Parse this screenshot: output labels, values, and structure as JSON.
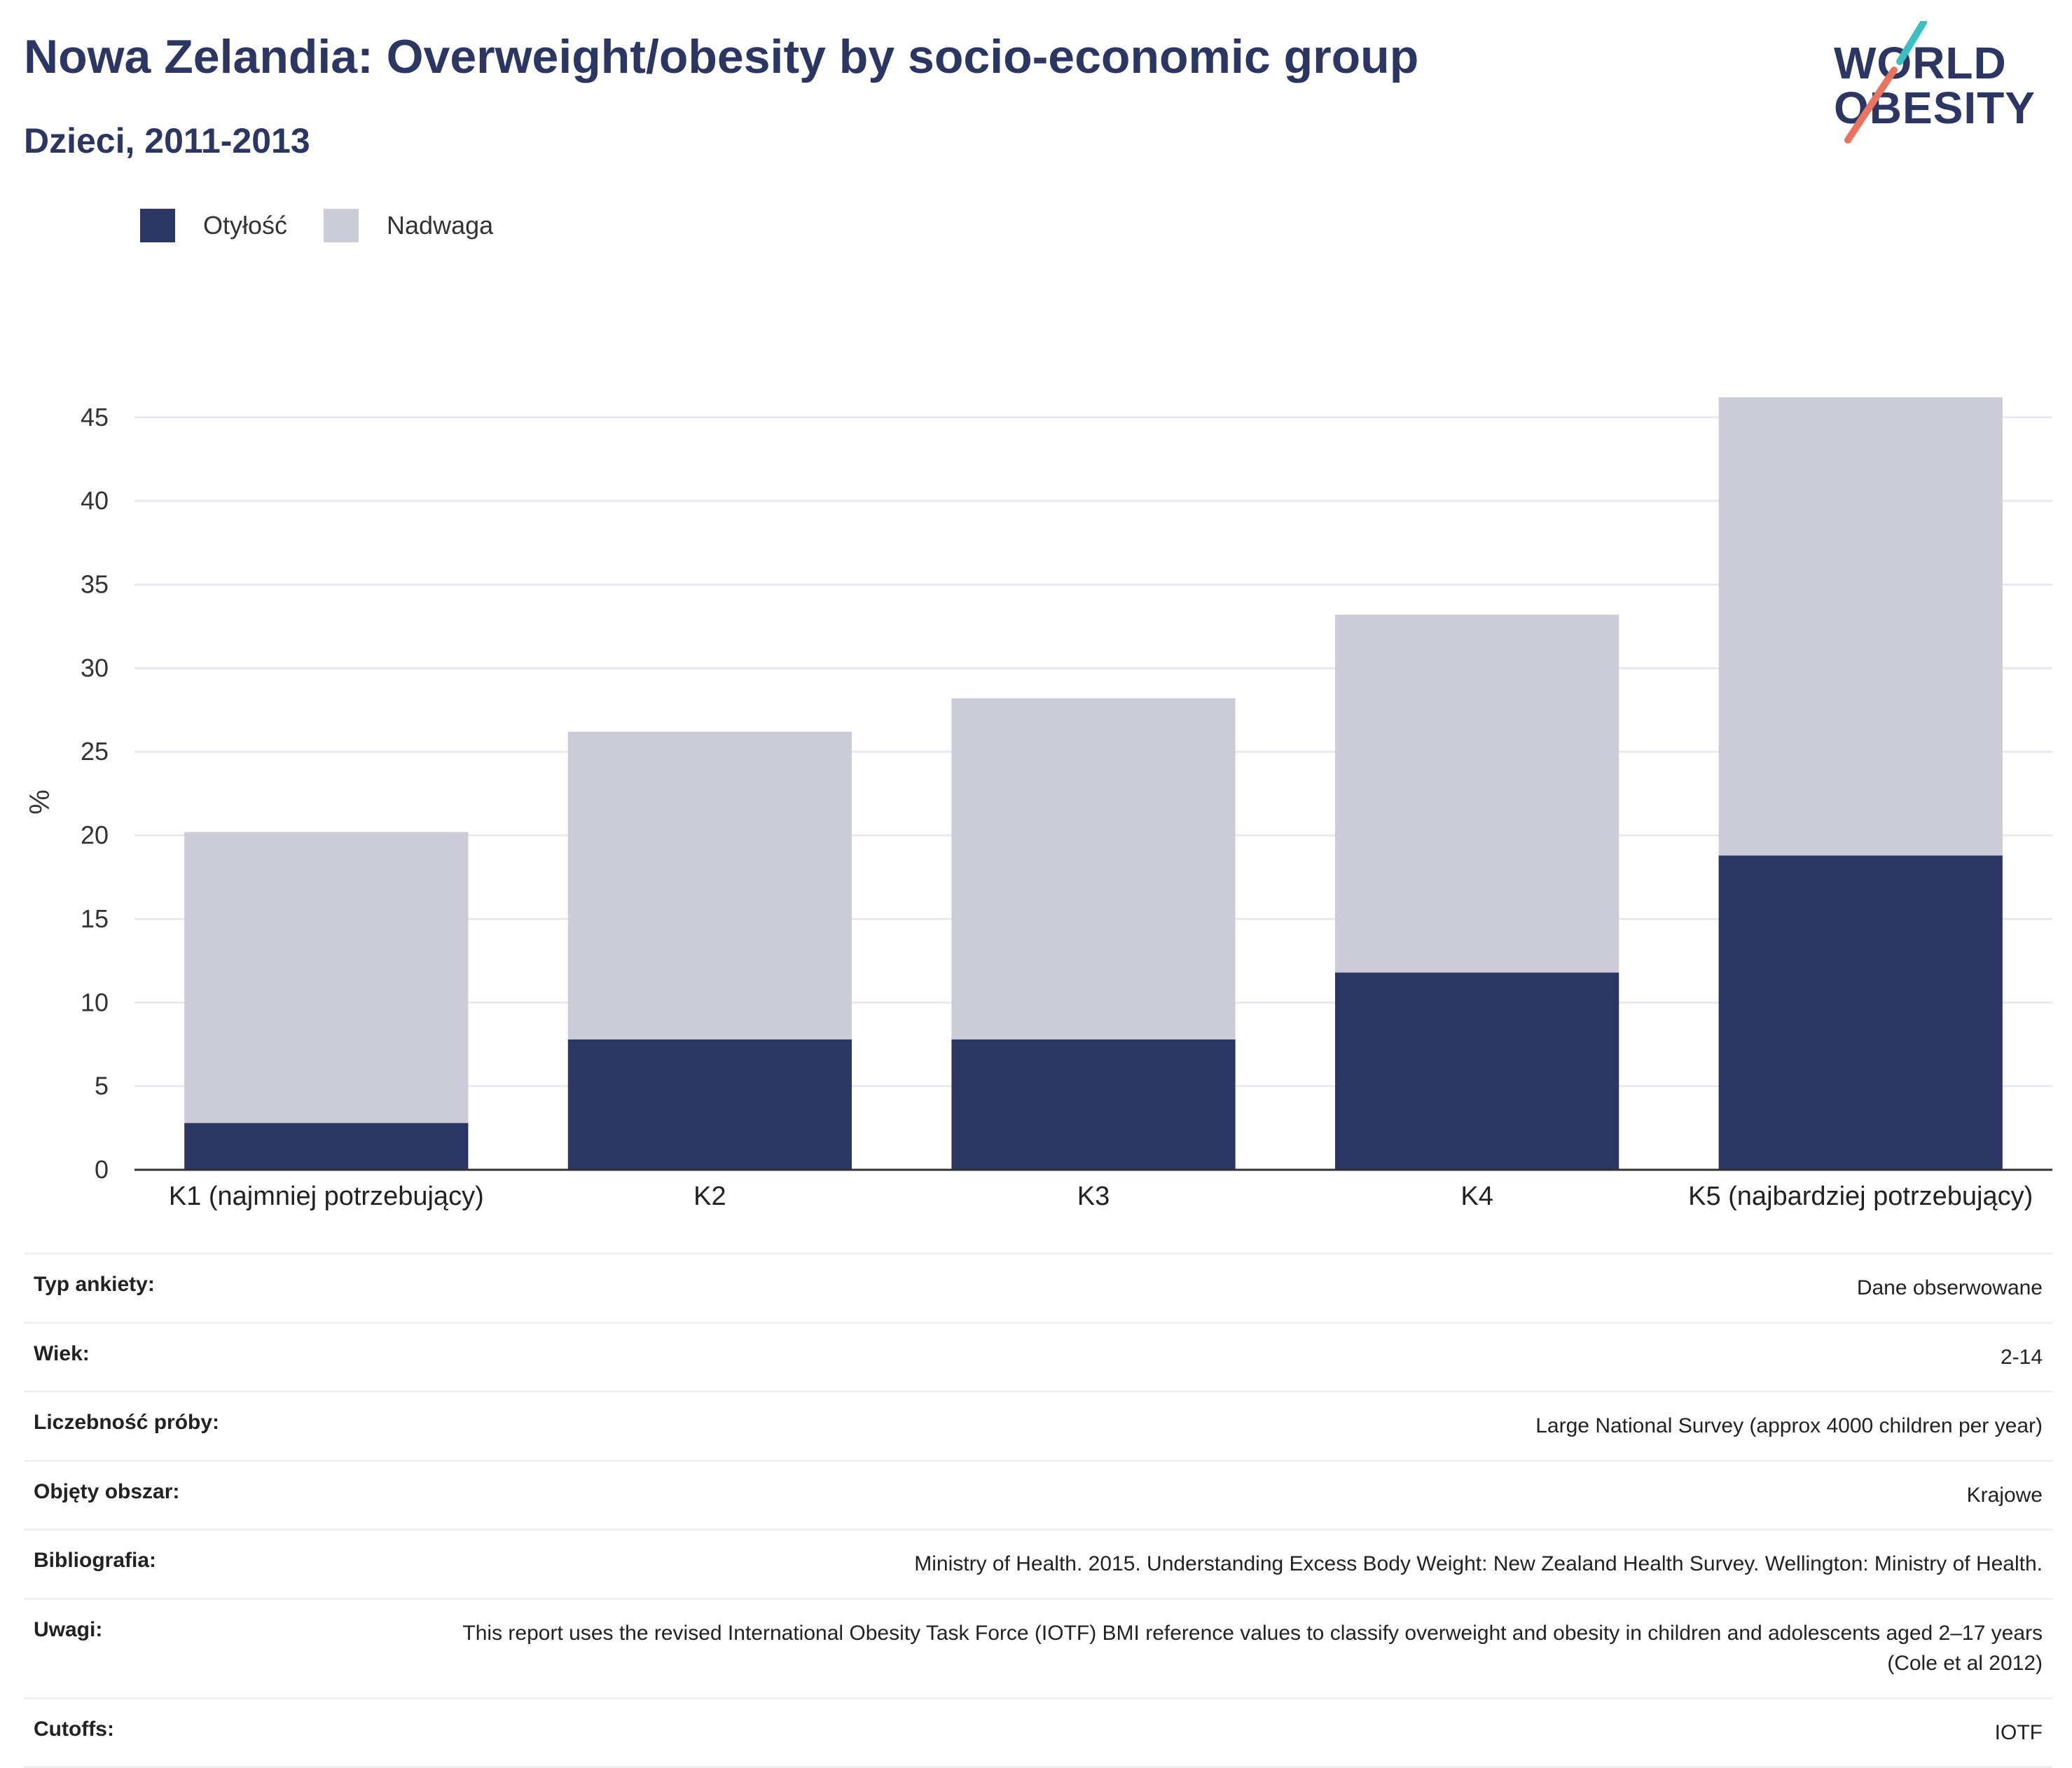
{
  "header": {
    "title": "Nowa Zelandia: Overweight/obesity by socio-economic group",
    "subtitle": "Dzieci, 2011-2013"
  },
  "logo": {
    "line1": "WORLD",
    "line2": "OBESITY",
    "accent_teal": "#3bbfc0",
    "accent_coral": "#e8735f"
  },
  "colors": {
    "obesity": "#2b3663",
    "overweight": "#cbccd8",
    "grid": "#e8e9ef",
    "axis": "#333333"
  },
  "chart_data": {
    "type": "bar",
    "stacked": true,
    "title": "Nowa Zelandia: Overweight/obesity by socio-economic group",
    "subtitle": "Dzieci, 2011-2013",
    "xlabel": "",
    "ylabel": "%",
    "ylim": [
      0,
      46.5
    ],
    "yticks": [
      0,
      5,
      10,
      15,
      20,
      25,
      30,
      35,
      40,
      45
    ],
    "categories": [
      "K1 (najmniej potrzebujący)",
      "K2",
      "K3",
      "K4",
      "K5 (najbardziej potrzebujący)"
    ],
    "series": [
      {
        "name": "Otyłość",
        "color": "#2b3663",
        "values": [
          2.8,
          7.8,
          7.8,
          11.8,
          18.8
        ]
      },
      {
        "name": "Nadwaga",
        "color": "#cbccd8",
        "values": [
          17.4,
          18.4,
          20.4,
          21.4,
          27.4
        ]
      }
    ],
    "legend": "top-left",
    "grid": true
  },
  "meta": [
    {
      "key": "Typ ankiety:",
      "value": "Dane obserwowane"
    },
    {
      "key": "Wiek:",
      "value": "2-14"
    },
    {
      "key": "Liczebność próby:",
      "value": "Large National Survey (approx 4000 children per year)"
    },
    {
      "key": "Objęty obszar:",
      "value": "Krajowe"
    },
    {
      "key": "Bibliografia:",
      "value": "Ministry of Health. 2015. Understanding Excess Body Weight: New Zealand Health Survey. Wellington: Ministry of Health."
    },
    {
      "key": "Uwagi:",
      "value": "This report uses the revised International Obesity Task Force (IOTF) BMI reference values to classify overweight and obesity in children and adolescents aged 2–17 years (Cole et al 2012)"
    },
    {
      "key": "Cutoffs:",
      "value": "IOTF"
    }
  ]
}
